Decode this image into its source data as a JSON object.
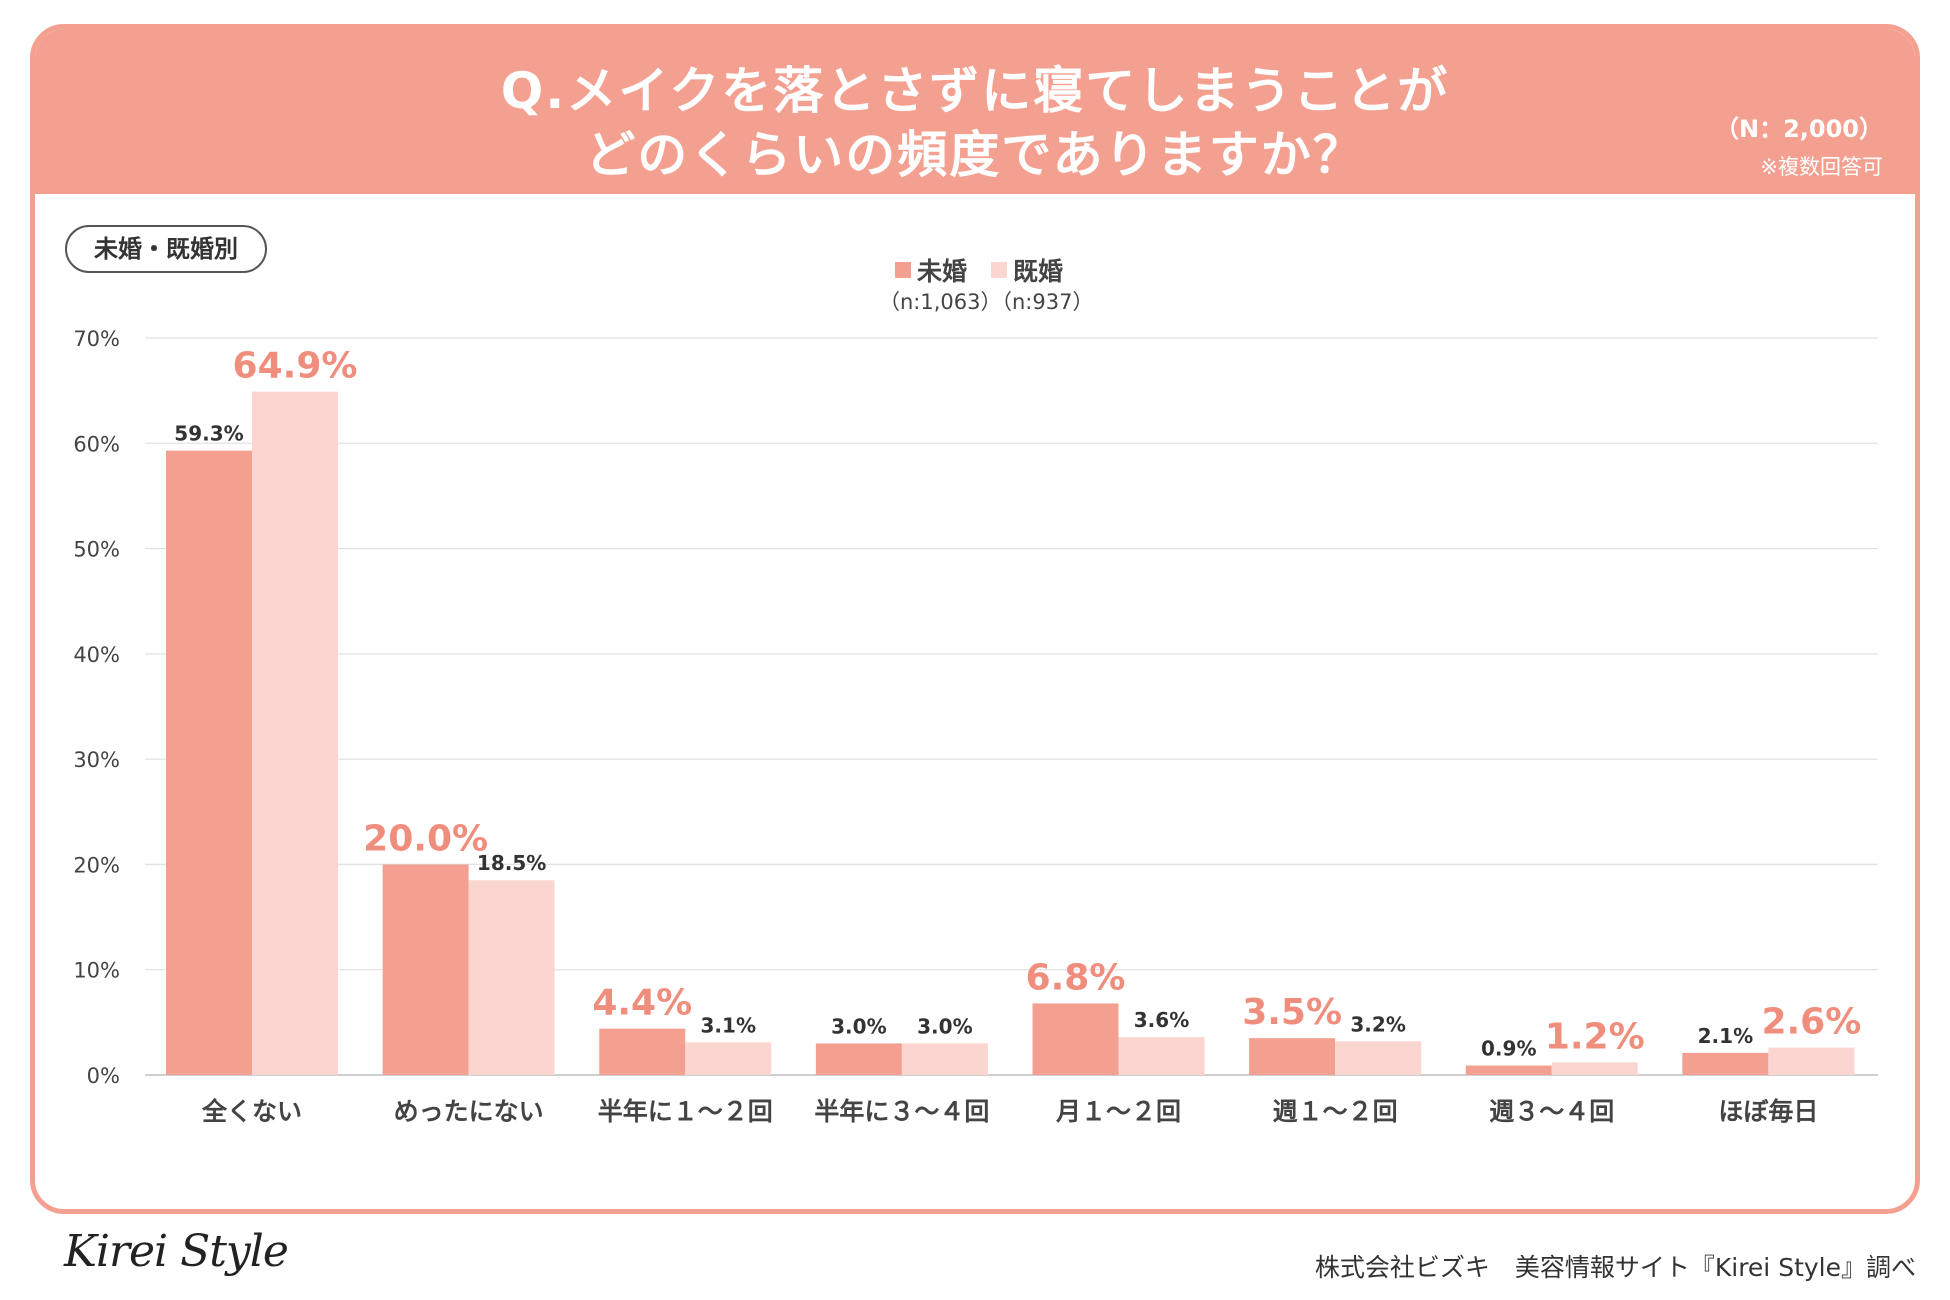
{
  "header": {
    "question_line1": "Q.メイクを落とさずに寝てしまうことが",
    "question_line2": "どのくらいの頻度でありますか？",
    "n_label": "（N：2,000）",
    "multi_answer_note": "※複数回答可"
  },
  "segment_label": "未婚・既婚別",
  "legend": {
    "series1": "未婚",
    "series1_n": "（n:1,063）",
    "series2": "既婚",
    "series2_n": "（n:937）"
  },
  "colors": {
    "accent": "#f4a091",
    "series1": "#f4a091",
    "series2": "#fbd6d0",
    "highlight_label": "#f08e7d",
    "grid": "#e2e2e2"
  },
  "chart_data": {
    "type": "bar",
    "categories": [
      "全くない",
      "めったにない",
      "半年に１〜２回",
      "半年に３〜４回",
      "月１〜２回",
      "週１〜２回",
      "週３〜４回",
      "ほぼ毎日"
    ],
    "series": [
      {
        "name": "未婚",
        "values": [
          59.3,
          20.0,
          4.4,
          3.0,
          6.8,
          3.5,
          0.9,
          2.1
        ],
        "labels": [
          "59.3%",
          "20.0%",
          "4.4%",
          "3.0%",
          "6.8%",
          "3.5%",
          "0.9%",
          "2.1%"
        ]
      },
      {
        "name": "既婚",
        "values": [
          64.9,
          18.5,
          3.1,
          3.0,
          3.6,
          3.2,
          1.2,
          2.6
        ],
        "labels": [
          "64.9%",
          "18.5%",
          "3.1%",
          "3.0%",
          "3.6%",
          "3.2%",
          "1.2%",
          "2.6%"
        ]
      }
    ],
    "highlight": [
      [
        false,
        true,
        true,
        false,
        true,
        true,
        false,
        false
      ],
      [
        true,
        false,
        false,
        false,
        false,
        false,
        true,
        true
      ]
    ],
    "ylim": [
      0,
      70
    ],
    "yticks": [
      0,
      10,
      20,
      30,
      40,
      50,
      60,
      70
    ],
    "ytick_labels": [
      "0%",
      "10%",
      "20%",
      "30%",
      "40%",
      "50%",
      "60%",
      "70%"
    ],
    "grid": true,
    "legend_position": "top-center"
  },
  "footer": {
    "logo": "Kirei Style",
    "credit": "株式会社ビズキ　美容情報サイト『Kirei Style』調べ"
  }
}
